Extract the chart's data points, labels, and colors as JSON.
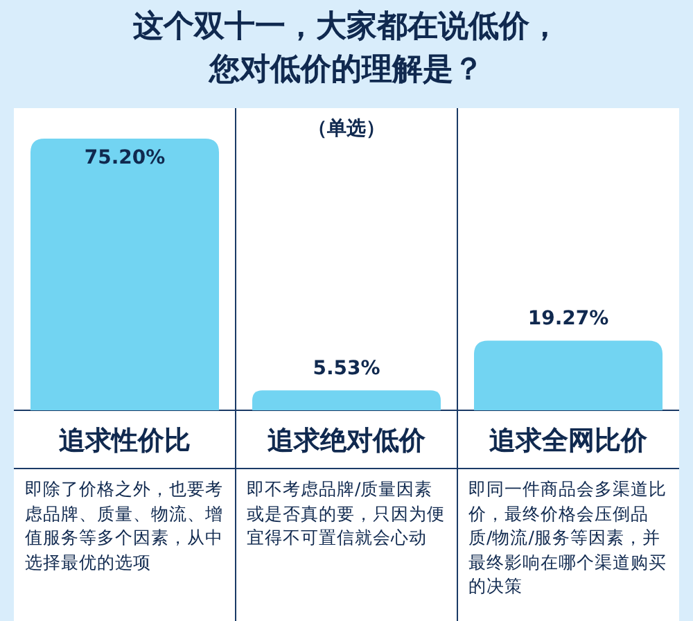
{
  "chart_data": {
    "type": "bar",
    "title": "这个双十一，大家都在说低价，您对低价的理解是？",
    "subtitle": "（单选）",
    "categories": [
      "追求性价比",
      "追求绝对低价",
      "追求全网比价"
    ],
    "values": [
      75.2,
      5.53,
      19.27
    ],
    "value_labels": [
      "75.20%",
      "5.53%",
      "19.27%"
    ],
    "color": "#72d4f2",
    "annotations": [
      "即除了价格之外，也要考虑品牌、质量、物流、增值服务等多个因素，从中选择最优的选项",
      "即不考虑品牌/质量因素或是否真的要，只因为便宜得不可置信就会心动",
      "即同一件商品会多渠道比价，最终价格会压倒品质/物流/服务等因素，并最终影响在哪个渠道购买的决策"
    ]
  }
}
